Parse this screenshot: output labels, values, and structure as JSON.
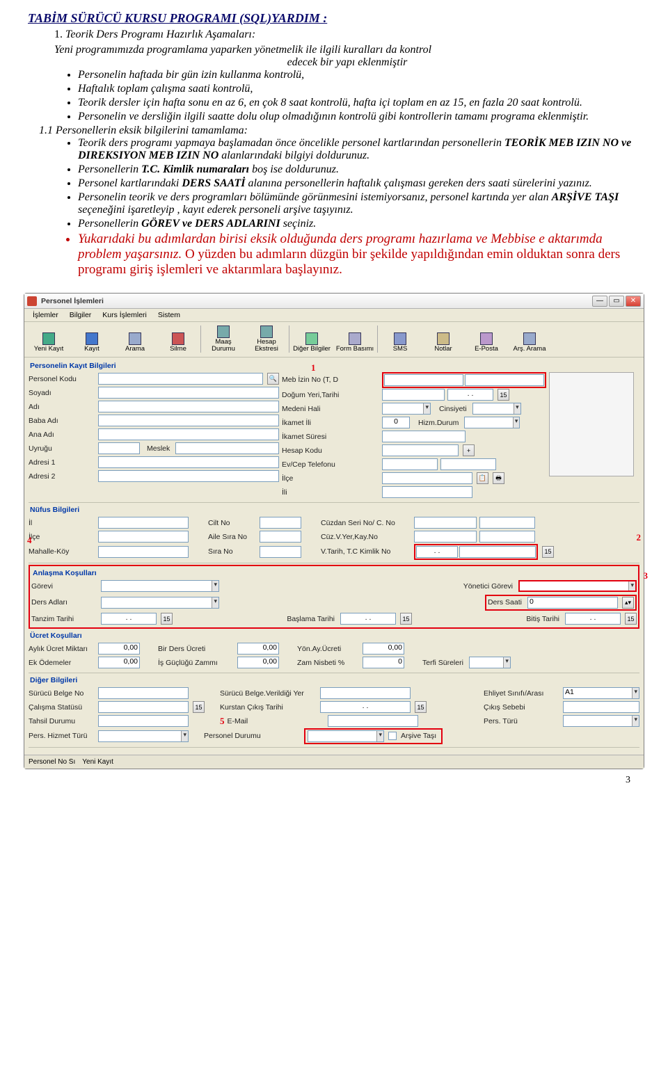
{
  "title": "TABİM SÜRÜCÜ KURSU PROGRAMI (SQL)YARDIM :",
  "section1": {
    "num": "1.",
    "head": "Teorik Ders Programı Hazırlık Aşamaları:",
    "p1": "Yeni programımızda programlama yaparken yönetmelik ile ilgili kuralları da kontrol",
    "p1c": "edecek bir yapı eklenmiştir",
    "bullets_a": [
      "Personelin haftada bir gün izin kullanma kontrolü,",
      "Haftalık toplam çalışma saati kontrolü,",
      "Teorik dersler için hafta sonu en az 6, en çok 8 saat kontrolü, hafta içi toplam en az 15, en fazla 20 saat kontrolü.",
      "Personelin ve dersliğin ilgili saatte dolu olup olmadığının kontrolü gibi kontrollerin tamamı programa eklenmiştir."
    ],
    "sub11": "1.1 Personellerin eksik bilgilerini tamamlama:",
    "b1_pre": "Teorik ders programı yapmaya başlamadan önce öncelikle personel kartlarından personellerin ",
    "b1_bold1": "TEORİK MEB IZIN NO ve DIREKSIYON MEB IZIN NO",
    "b1_post": " alanlarındaki bilgiyi doldurunuz.",
    "b2_pre": "Personellerin ",
    "b2_bold": "T.C. Kimlik numaraları",
    "b2_post": " boş ise doldurunuz.",
    "b3_pre": "Personel kartlarındaki ",
    "b3_bold": "DERS SAATİ",
    "b3_post": " alanına personellerin haftalık çalışması gereken ders saati sürelerini yazınız.",
    "b4_pre": "Personelin teorik ve ders programları bölümünde görünmesini istemiyorsanız, personel kartında yer alan ",
    "b4_bold": "ARŞİVE TAŞI",
    "b4_post": " seçeneğini işaretleyip , kayıt ederek personeli arşive taşıyınız.",
    "b5_pre": "Personellerin ",
    "b5_bold": "GÖREV ve DERS ADLARINI",
    "b5_post": " seçiniz.",
    "red_a": "Yukarıdaki bu adımlardan birisi eksik olduğunda ders programı hazırlama ve Mebbise e aktarımda problem yaşarsınız.",
    "red_b": "O yüzden bu adımların düzgün bir şekilde yapıldığından emin olduktan sonra ders programı giriş işlemleri ve aktarımlara başlayınız."
  },
  "shot": {
    "window_title": "Personel İşlemleri",
    "menus": [
      "İşlemler",
      "Bilgiler",
      "Kurs İşlemleri",
      "Sistem"
    ],
    "toolbar": [
      {
        "l": "Yeni Kayıt",
        "c": "#4a8"
      },
      {
        "l": "Kayıt",
        "c": "#47c"
      },
      {
        "l": "Arama",
        "c": "#9ac"
      },
      {
        "l": "Silme",
        "c": "#c55"
      },
      {
        "l": "Maaş\nDurumu",
        "c": "#7aa"
      },
      {
        "l": "Hesap\nEkstresi",
        "c": "#7aa"
      },
      {
        "l": "Diğer Bilgiler",
        "c": "#7c9"
      },
      {
        "l": "Form Basımı",
        "c": "#aac"
      },
      {
        "l": "SMS",
        "c": "#89c"
      },
      {
        "l": "Notlar",
        "c": "#cb8"
      },
      {
        "l": "E-Posta",
        "c": "#b9c"
      },
      {
        "l": "Arş. Arama",
        "c": "#9ac"
      }
    ],
    "grp1": "Personelin Kayıt Bilgileri",
    "left_labels": [
      "Personel Kodu",
      "Soyadı",
      "Adı",
      "Baba Adı",
      "Ana Adı",
      "Uyruğu",
      "Adresi 1",
      "Adresi 2"
    ],
    "meslek": "Meslek",
    "right_rows": [
      {
        "l": "Meb İzin No (T, D"
      },
      {
        "l": "Doğum Yeri,Tarihi",
        "dots": "  .  .  "
      },
      {
        "l": "Medeni Hali",
        "r": "Cinsiyeti"
      },
      {
        "l": "İkamet İli",
        "mid": "0",
        "r": "Hizm.Durum"
      },
      {
        "l": "İkamet Süresi"
      },
      {
        "l": "Hesap Kodu"
      },
      {
        "l": "Ev/Cep Telefonu"
      },
      {
        "l": "İlçe"
      },
      {
        "l": "İli"
      }
    ],
    "grp2": "Nüfus Bilgileri",
    "nufus_left": [
      "İl",
      "İlçe",
      "Mahalle-Köy"
    ],
    "nufus_mid": [
      "Cilt No",
      "Aile Sıra No",
      "Sıra No"
    ],
    "nufus_right": [
      {
        "l": "Cüzdan Seri No/ C. No"
      },
      {
        "l": "Cüz.V.Yer,Kay.No"
      },
      {
        "l": "V.Tarih, T.C Kimlik No",
        "dots": "  .  .  "
      }
    ],
    "grp3": "Anlaşma Koşulları",
    "anlasma": {
      "gorevi": "Görevi",
      "yonetici": "Yönetici Görevi",
      "dersadlari": "Ders Adları",
      "derssaati": "Ders Saati",
      "derssaati_v": "0",
      "tanzim": "Tanzim Tarihi",
      "baslama": "Başlama Tarihi",
      "bitis": "Bitiş Tarihi",
      "dots": "  .  .  "
    },
    "grp4": "Ücret Koşulları",
    "ucret": [
      {
        "l": "Aylık Ücret Miktarı",
        "v": "0,00",
        "m": "Bir Ders Ücreti",
        "mv": "0,00",
        "r": "Yön.Ay.Ücreti",
        "rv": "0,00"
      },
      {
        "l": "Ek Ödemeler",
        "v": "0,00",
        "m": "İş Güçlüğü Zammı",
        "mv": "0,00",
        "r": "Zam Nisbeti %",
        "rv": "0",
        "rr": "Terfi Süreleri"
      }
    ],
    "grp5": "Diğer Bilgileri",
    "diger": [
      {
        "l": "Sürücü Belge No",
        "m": "Sürücü Belge.Verildiği Yer",
        "r": "Ehliyet Sınıfı/Arası",
        "rv": "A1"
      },
      {
        "l": "Çalışma Statüsü",
        "m": "Kurstan Çıkış Tarihi",
        "mdots": "  .  .  ",
        "r": "Çıkış Sebebi"
      },
      {
        "l": "Tahsil Durumu",
        "m5": "5",
        "m": "E-Mail",
        "r": "Pers. Türü"
      },
      {
        "l": "Pers. Hizmet Türü",
        "m": "Personel Durumu",
        "chk": "Arşive Taşı"
      }
    ],
    "footer": {
      "a": "Personel No Sı",
      "b": "Yeni Kayıt"
    },
    "marks": {
      "1": "1",
      "2": "2",
      "3": "3",
      "4": "4",
      "5": "5"
    }
  },
  "pageno": "3"
}
